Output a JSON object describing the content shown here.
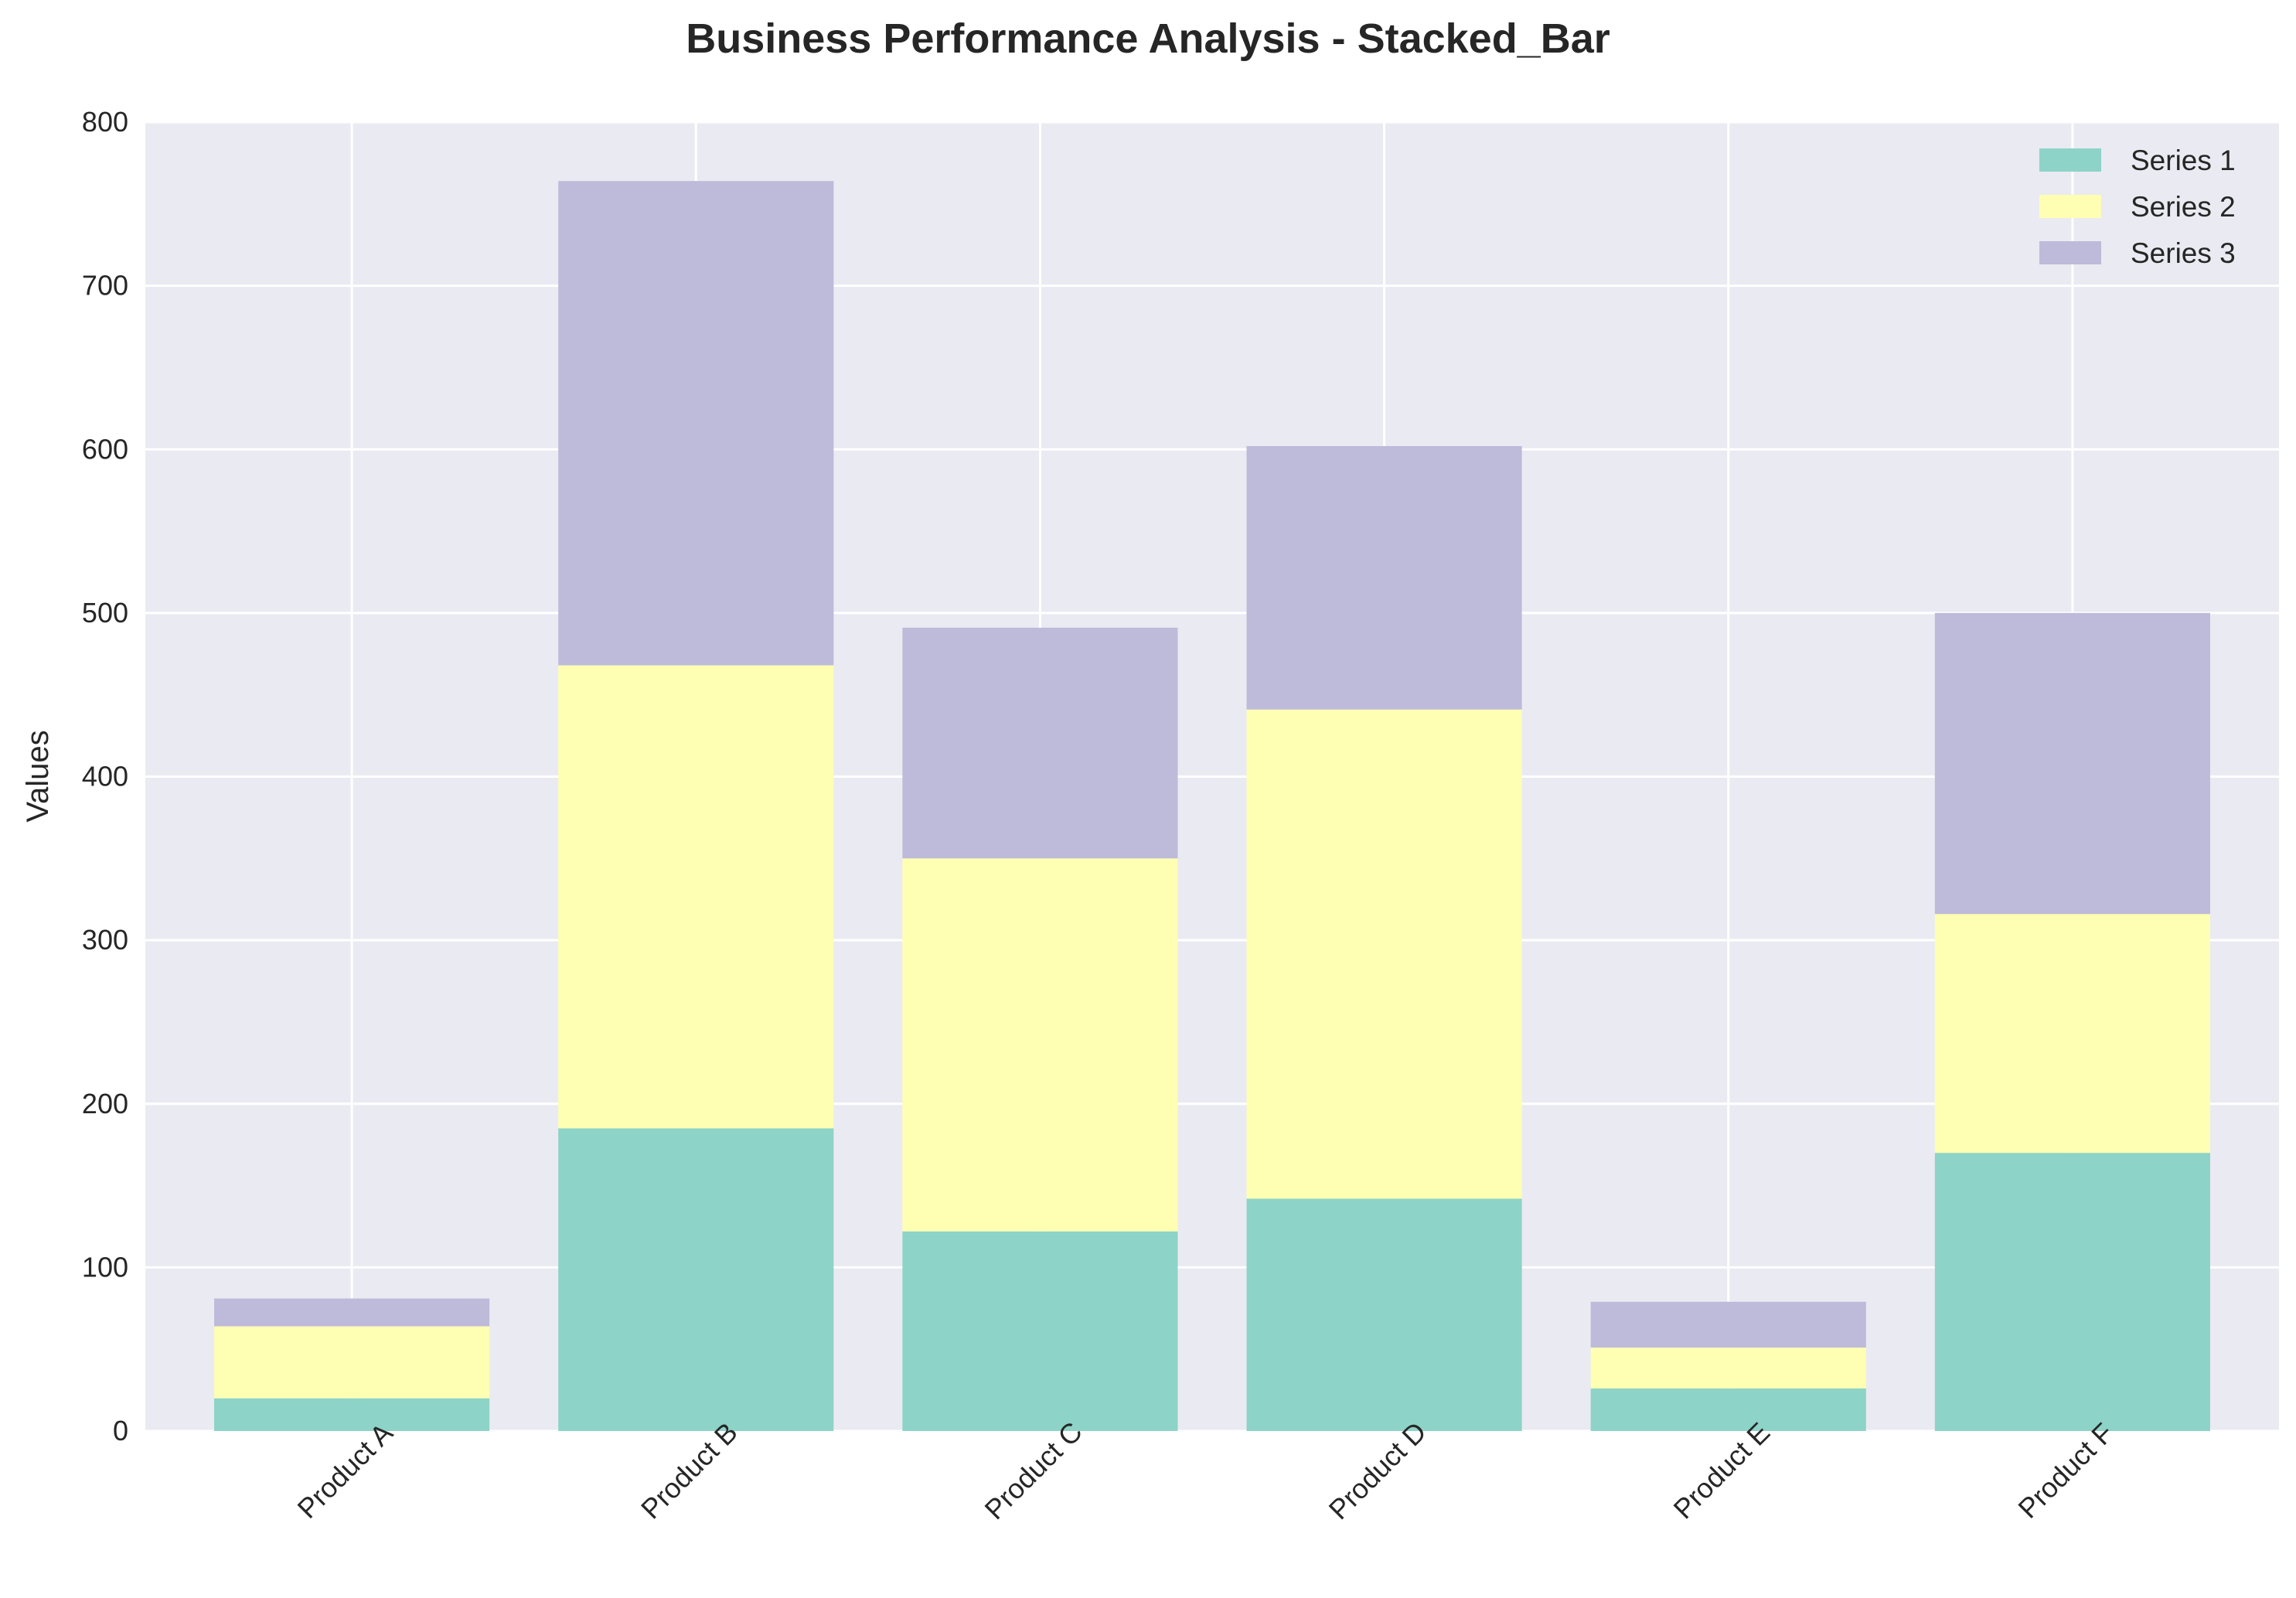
{
  "chart_data": {
    "type": "bar",
    "stacked": true,
    "title": "Business Performance Analysis - Stacked_Bar",
    "xlabel": "",
    "ylabel": "Values",
    "ylim": [
      0,
      800
    ],
    "yticks": [
      0,
      100,
      200,
      300,
      400,
      500,
      600,
      700,
      800
    ],
    "categories": [
      "Product A",
      "Product B",
      "Product C",
      "Product D",
      "Product E",
      "Product F"
    ],
    "series": [
      {
        "name": "Series 1",
        "color": "#8dd3c7",
        "values": [
          20,
          185,
          122,
          142,
          26,
          170
        ]
      },
      {
        "name": "Series 2",
        "color": "#ffffb3",
        "values": [
          44,
          283,
          228,
          299,
          25,
          146
        ]
      },
      {
        "name": "Series 3",
        "color": "#bebada",
        "values": [
          17,
          296,
          141,
          161,
          28,
          184
        ]
      }
    ],
    "grid": true,
    "legend_position": "top-right",
    "background": "#eaeaf2"
  }
}
